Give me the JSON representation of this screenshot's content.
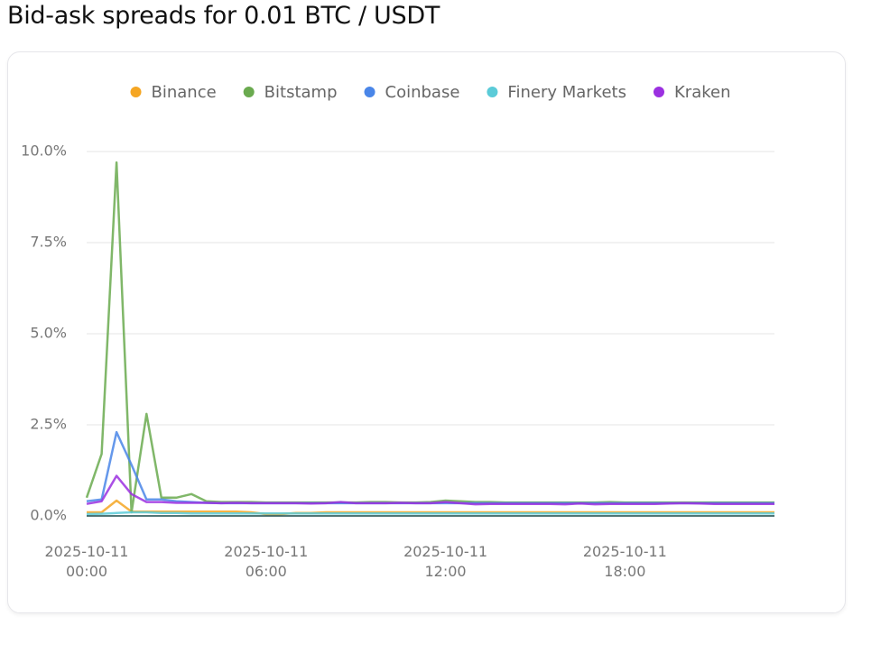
{
  "chart_data": {
    "type": "line",
    "title": "Bid-ask spreads for 0.01 BTC / USDT",
    "x": [
      "2025-10-11 00:00",
      "2025-10-11 00:30",
      "2025-10-11 01:00",
      "2025-10-11 01:30",
      "2025-10-11 02:00",
      "2025-10-11 02:30",
      "2025-10-11 03:00",
      "2025-10-11 03:30",
      "2025-10-11 04:00",
      "2025-10-11 04:30",
      "2025-10-11 05:00",
      "2025-10-11 05:30",
      "2025-10-11 06:00",
      "2025-10-11 06:30",
      "2025-10-11 07:00",
      "2025-10-11 07:30",
      "2025-10-11 08:00",
      "2025-10-11 08:30",
      "2025-10-11 09:00",
      "2025-10-11 09:30",
      "2025-10-11 10:00",
      "2025-10-11 10:30",
      "2025-10-11 11:00",
      "2025-10-11 11:30",
      "2025-10-11 12:00",
      "2025-10-11 12:30",
      "2025-10-11 13:00",
      "2025-10-11 13:30",
      "2025-10-11 14:00",
      "2025-10-11 14:30",
      "2025-10-11 15:00",
      "2025-10-11 15:30",
      "2025-10-11 16:00",
      "2025-10-11 16:30",
      "2025-10-11 17:00",
      "2025-10-11 17:30",
      "2025-10-11 18:00",
      "2025-10-11 18:30",
      "2025-10-11 19:00",
      "2025-10-11 19:30",
      "2025-10-11 20:00",
      "2025-10-11 20:30",
      "2025-10-11 21:00",
      "2025-10-11 21:30",
      "2025-10-11 22:00",
      "2025-10-11 22:30",
      "2025-10-11 23:00"
    ],
    "xlim": [
      "2025-10-11 00:00",
      "2025-10-11 23:00"
    ],
    "xticks": [
      "2025-10-11 00:00",
      "2025-10-11 06:00",
      "2025-10-11 12:00",
      "2025-10-11 18:00"
    ],
    "ylim": [
      0,
      10
    ],
    "yticks": [
      {
        "value": 0,
        "label": "0.0%"
      },
      {
        "value": 2.5,
        "label": "2.5%"
      },
      {
        "value": 5,
        "label": "5.0%"
      },
      {
        "value": 7.5,
        "label": "7.5%"
      },
      {
        "value": 10,
        "label": "10.0%"
      }
    ],
    "grid": true,
    "legend": "top",
    "series": [
      {
        "name": "Binance",
        "color": "#f5a623",
        "values": [
          0.1,
          0.1,
          0.42,
          0.12,
          0.12,
          0.12,
          0.12,
          0.12,
          0.12,
          0.12,
          0.12,
          0.1,
          0.05,
          0.05,
          0.08,
          0.08,
          0.1,
          0.1,
          0.1,
          0.1,
          0.1,
          0.1,
          0.1,
          0.1,
          0.1,
          0.1,
          0.1,
          0.1,
          0.1,
          0.1,
          0.1,
          0.1,
          0.1,
          0.1,
          0.1,
          0.1,
          0.1,
          0.1,
          0.1,
          0.1,
          0.1,
          0.1,
          0.1,
          0.1,
          0.1,
          0.1,
          0.1
        ]
      },
      {
        "name": "Bitstamp",
        "color": "#6aaa4f",
        "values": [
          0.5,
          1.7,
          9.7,
          0.1,
          2.8,
          0.5,
          0.5,
          0.6,
          0.4,
          0.38,
          0.38,
          0.38,
          0.37,
          0.37,
          0.37,
          0.37,
          0.37,
          0.37,
          0.37,
          0.38,
          0.38,
          0.37,
          0.37,
          0.38,
          0.42,
          0.4,
          0.38,
          0.38,
          0.37,
          0.37,
          0.37,
          0.37,
          0.37,
          0.37,
          0.37,
          0.38,
          0.37,
          0.37,
          0.37,
          0.37,
          0.37,
          0.37,
          0.37,
          0.37,
          0.37,
          0.37,
          0.37
        ]
      },
      {
        "name": "Coinbase",
        "color": "#4a86e8",
        "values": [
          0.4,
          0.45,
          2.3,
          1.4,
          0.45,
          0.45,
          0.4,
          0.38,
          0.36,
          0.35,
          0.35,
          0.35,
          0.35,
          0.35,
          0.35,
          0.35,
          0.35,
          0.35,
          0.35,
          0.35,
          0.35,
          0.35,
          0.35,
          0.35,
          0.35,
          0.35,
          0.35,
          0.35,
          0.35,
          0.35,
          0.35,
          0.35,
          0.35,
          0.35,
          0.35,
          0.35,
          0.35,
          0.35,
          0.35,
          0.35,
          0.35,
          0.35,
          0.35,
          0.35,
          0.35,
          0.35,
          0.35
        ]
      },
      {
        "name": "Finery Markets",
        "color": "#5bcbd8",
        "values": [
          0.05,
          0.06,
          0.08,
          0.1,
          0.1,
          0.08,
          0.08,
          0.07,
          0.07,
          0.07,
          0.07,
          0.07,
          0.07,
          0.07,
          0.07,
          0.07,
          0.07,
          0.07,
          0.07,
          0.07,
          0.07,
          0.07,
          0.07,
          0.07,
          0.07,
          0.07,
          0.07,
          0.07,
          0.07,
          0.07,
          0.07,
          0.07,
          0.07,
          0.07,
          0.07,
          0.07,
          0.07,
          0.07,
          0.07,
          0.07,
          0.07,
          0.07,
          0.07,
          0.07,
          0.07,
          0.07,
          0.07
        ]
      },
      {
        "name": "Kraken",
        "color": "#9b30e0",
        "values": [
          0.33,
          0.4,
          1.1,
          0.6,
          0.38,
          0.38,
          0.36,
          0.36,
          0.36,
          0.35,
          0.36,
          0.35,
          0.35,
          0.35,
          0.35,
          0.34,
          0.35,
          0.38,
          0.35,
          0.35,
          0.35,
          0.36,
          0.35,
          0.35,
          0.38,
          0.35,
          0.32,
          0.33,
          0.33,
          0.33,
          0.33,
          0.33,
          0.32,
          0.34,
          0.32,
          0.33,
          0.33,
          0.33,
          0.33,
          0.34,
          0.35,
          0.34,
          0.33,
          0.33,
          0.33,
          0.33,
          0.33
        ]
      }
    ]
  }
}
